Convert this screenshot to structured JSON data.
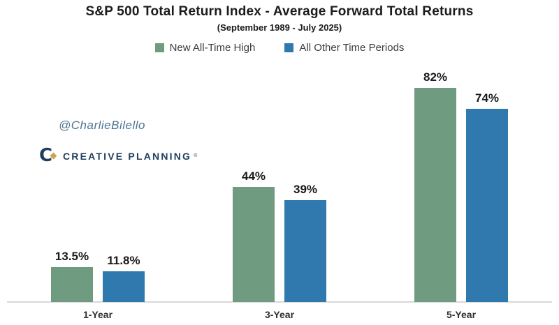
{
  "header": {
    "title": "S&P 500 Total Return Index - Average Forward Total Returns",
    "subtitle": "(September 1989 - July 2025)"
  },
  "watermark": {
    "handle": "@CharlieBilello",
    "logo_letter": "C",
    "logo_text": "CREATIVE PLANNING",
    "logo_trademark": "®"
  },
  "chart_data": {
    "type": "bar",
    "title": "S&P 500 Total Return Index - Average Forward Total Returns",
    "subtitle": "(September 1989 - July 2025)",
    "categories": [
      "1-Year",
      "3-Year",
      "5-Year"
    ],
    "series": [
      {
        "name": "New All-Time High",
        "color": "#6f9b81",
        "values": [
          13.5,
          44,
          82
        ],
        "labels": [
          "13.5%",
          "44%",
          "82%"
        ]
      },
      {
        "name": "All Other Time Periods",
        "color": "#3079ae",
        "values": [
          11.8,
          39,
          74
        ],
        "labels": [
          "11.8%",
          "39%",
          "74%"
        ]
      }
    ],
    "xlabel": "",
    "ylabel": "",
    "ylim": [
      0,
      92
    ],
    "grid": false,
    "legend_position": "top",
    "value_suffix": "%",
    "axis_line_color": "#d9d9d9"
  }
}
